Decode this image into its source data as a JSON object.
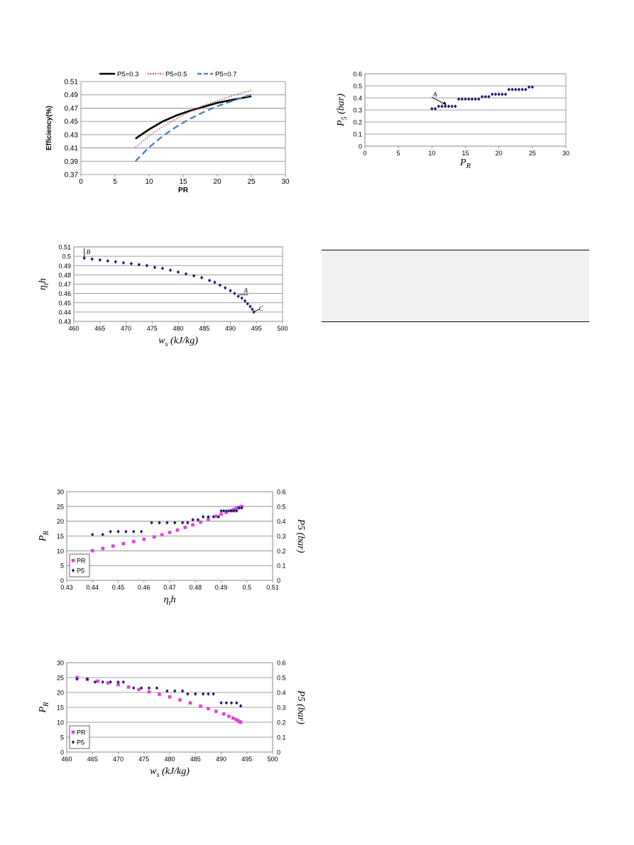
{
  "chart_data": [
    {
      "id": "fig-eff-vs-pr",
      "type": "line",
      "xlabel": "PR",
      "ylabel": "Efficiency(%)",
      "xlim": [
        0,
        30
      ],
      "ylim": [
        0.37,
        0.51
      ],
      "xticks": [
        "0",
        "5",
        "10",
        "15",
        "20",
        "25",
        "30"
      ],
      "yticks": [
        "0.37",
        "0.39",
        "0.41",
        "0.43",
        "0.45",
        "0.47",
        "0.49",
        "0.51"
      ],
      "grid": true,
      "legend": "top",
      "series": [
        {
          "name": "P5=0.3",
          "color": "#000000",
          "style": "solid",
          "x": [
            8,
            10,
            12,
            14,
            16,
            18,
            20,
            22,
            24,
            25
          ],
          "y": [
            0.424,
            0.438,
            0.45,
            0.459,
            0.466,
            0.472,
            0.478,
            0.482,
            0.486,
            0.488
          ]
        },
        {
          "name": "P5=0.5",
          "color": "#c0504d",
          "style": "dotted",
          "x": [
            8,
            10,
            12,
            14,
            16,
            18,
            20,
            22,
            24,
            25
          ],
          "y": [
            0.411,
            0.428,
            0.442,
            0.454,
            0.465,
            0.474,
            0.481,
            0.488,
            0.494,
            0.497
          ]
        },
        {
          "name": "P5=0.7",
          "color": "#4f81bd",
          "style": "dashed",
          "x": [
            8,
            10,
            12,
            14,
            16,
            18,
            20,
            22,
            24,
            25
          ],
          "y": [
            0.39,
            0.411,
            0.428,
            0.442,
            0.454,
            0.464,
            0.473,
            0.48,
            0.487,
            0.49
          ]
        }
      ]
    },
    {
      "id": "fig-p5-vs-pr",
      "type": "scatter",
      "xlabel": "P_R",
      "ylabel": "P_5 (bar)",
      "xlim": [
        0,
        30
      ],
      "ylim": [
        0,
        0.6
      ],
      "xticks": [
        "0",
        "5",
        "10",
        "15",
        "20",
        "25",
        "30"
      ],
      "yticks": [
        "0",
        "0.1",
        "0.2",
        "0.3",
        "0.4",
        "0.5",
        "0.6"
      ],
      "grid": true,
      "annotations": [
        {
          "text": "A",
          "x": 12.3,
          "y": 0.335
        }
      ],
      "series": [
        {
          "name": "",
          "color": "#1f1f6e",
          "x": [
            10,
            10.5,
            11,
            11.5,
            12,
            12.5,
            13,
            13.5,
            14,
            14.5,
            15,
            15.5,
            16,
            16.5,
            17,
            17.5,
            18,
            18.5,
            19,
            19.5,
            20,
            20.5,
            21,
            21.5,
            22,
            22.5,
            23,
            23.5,
            24,
            24.5,
            25
          ],
          "y": [
            0.31,
            0.31,
            0.33,
            0.33,
            0.33,
            0.33,
            0.33,
            0.33,
            0.39,
            0.39,
            0.39,
            0.39,
            0.39,
            0.39,
            0.39,
            0.41,
            0.41,
            0.41,
            0.43,
            0.43,
            0.43,
            0.43,
            0.43,
            0.47,
            0.47,
            0.47,
            0.47,
            0.47,
            0.47,
            0.49,
            0.49
          ]
        }
      ]
    },
    {
      "id": "fig-eta-vs-ws",
      "type": "scatter",
      "xlabel": "w_s (kJ/kg)",
      "ylabel": "η_th",
      "xlim": [
        460,
        500
      ],
      "ylim": [
        0.43,
        0.51
      ],
      "xticks": [
        "460",
        "465",
        "470",
        "475",
        "480",
        "485",
        "490",
        "495",
        "500"
      ],
      "yticks": [
        "0.43",
        "0.44",
        "0.45",
        "0.46",
        "0.47",
        "0.48",
        "0.49",
        "0.5",
        "0.51"
      ],
      "grid": true,
      "annotations": [
        {
          "text": "B",
          "x": 462,
          "y": 0.501
        },
        {
          "text": "A",
          "x": 491.5,
          "y": 0.458
        },
        {
          "text": "C",
          "x": 494.5,
          "y": 0.44
        }
      ],
      "series": [
        {
          "name": "",
          "color": "#1f1f6e",
          "x": [
            462,
            463.5,
            465,
            466.5,
            468,
            469.5,
            471,
            472.5,
            474,
            475.5,
            477,
            478.5,
            480,
            481.5,
            483,
            484.5,
            486,
            487,
            488,
            489,
            490,
            490.8,
            491.5,
            492.2,
            492.8,
            493.3,
            493.8,
            494.2,
            494.5
          ],
          "y": [
            0.498,
            0.497,
            0.496,
            0.495,
            0.494,
            0.493,
            0.492,
            0.491,
            0.49,
            0.488,
            0.487,
            0.485,
            0.483,
            0.481,
            0.479,
            0.477,
            0.474,
            0.472,
            0.469,
            0.466,
            0.463,
            0.46,
            0.457,
            0.455,
            0.452,
            0.449,
            0.446,
            0.443,
            0.44
          ]
        }
      ]
    },
    {
      "id": "fig-pr-p5-vs-eta",
      "type": "scatter",
      "xlabel": "η_th",
      "ylabel": "P_R",
      "y2label": "P_5 (bar)",
      "xlim": [
        0.43,
        0.51
      ],
      "ylim": [
        0,
        30
      ],
      "y2lim": [
        0,
        0.6
      ],
      "xticks": [
        "0.43",
        "0.44",
        "0.45",
        "0.46",
        "0.47",
        "0.48",
        "0.49",
        "0.5",
        "0.51"
      ],
      "yticks": [
        "0",
        "5",
        "10",
        "15",
        "20",
        "25",
        "30"
      ],
      "y2ticks": [
        "0",
        "0.1",
        "0.2",
        "0.3",
        "0.4",
        "0.5",
        "0.6"
      ],
      "grid": true,
      "legend": "bottom-left",
      "series": [
        {
          "name": "PR",
          "color": "#e040e0",
          "marker": "square",
          "axis": "left",
          "x": [
            0.44,
            0.444,
            0.448,
            0.452,
            0.456,
            0.46,
            0.464,
            0.467,
            0.47,
            0.473,
            0.476,
            0.479,
            0.482,
            0.485,
            0.488,
            0.49,
            0.492,
            0.494,
            0.495,
            0.496,
            0.497,
            0.498
          ],
          "y": [
            10.0,
            10.8,
            11.6,
            12.4,
            13.1,
            13.9,
            14.7,
            15.4,
            16.2,
            17.0,
            17.9,
            18.8,
            19.7,
            20.7,
            21.7,
            22.4,
            23.0,
            23.6,
            24.0,
            24.4,
            24.7,
            25.0
          ]
        },
        {
          "name": "P5",
          "color": "#1f1f6e",
          "marker": "diamond",
          "axis": "right",
          "x": [
            0.44,
            0.444,
            0.447,
            0.45,
            0.453,
            0.456,
            0.459,
            0.463,
            0.466,
            0.469,
            0.472,
            0.475,
            0.477,
            0.479,
            0.481,
            0.483,
            0.485,
            0.487,
            0.489,
            0.49,
            0.491,
            0.492,
            0.493,
            0.494,
            0.495,
            0.496,
            0.497,
            0.498
          ],
          "y": [
            0.31,
            0.31,
            0.33,
            0.33,
            0.33,
            0.33,
            0.33,
            0.39,
            0.39,
            0.39,
            0.39,
            0.39,
            0.39,
            0.41,
            0.41,
            0.43,
            0.43,
            0.43,
            0.43,
            0.47,
            0.47,
            0.47,
            0.47,
            0.47,
            0.47,
            0.47,
            0.49,
            0.49
          ]
        }
      ]
    },
    {
      "id": "fig-pr-p5-vs-ws",
      "type": "scatter",
      "xlabel": "w_s (kJ/kg)",
      "ylabel": "P_R",
      "y2label": "P_5 (bar)",
      "xlim": [
        460,
        500
      ],
      "ylim": [
        0,
        30
      ],
      "y2lim": [
        0,
        0.6
      ],
      "xticks": [
        "460",
        "465",
        "470",
        "475",
        "480",
        "485",
        "490",
        "495",
        "500"
      ],
      "yticks": [
        "0",
        "5",
        "10",
        "15",
        "20",
        "25",
        "30"
      ],
      "y2ticks": [
        "0",
        "0.1",
        "0.2",
        "0.3",
        "0.4",
        "0.5",
        "0.6"
      ],
      "grid": true,
      "legend": "bottom-left",
      "series": [
        {
          "name": "PR",
          "color": "#e040e0",
          "marker": "square",
          "axis": "left",
          "x": [
            462,
            464,
            466,
            468,
            470,
            472,
            474,
            476,
            478,
            480,
            482,
            484,
            486,
            487.5,
            489,
            490.5,
            491.5,
            492.3,
            492.9,
            493.3,
            493.6,
            493.8
          ],
          "y": [
            25.0,
            24.4,
            23.8,
            23.2,
            22.6,
            21.8,
            21.0,
            20.2,
            19.4,
            18.5,
            17.5,
            16.5,
            15.4,
            14.6,
            13.7,
            12.8,
            12.0,
            11.4,
            10.9,
            10.5,
            10.2,
            10.0
          ]
        },
        {
          "name": "P5",
          "color": "#1f1f6e",
          "marker": "diamond",
          "axis": "right",
          "x": [
            462,
            464,
            465.5,
            467,
            468.5,
            470,
            471,
            473,
            474.5,
            476,
            477.5,
            479.5,
            481,
            482.5,
            483.5,
            485,
            486.5,
            487.5,
            488.5,
            490,
            491,
            492,
            493,
            493.8
          ],
          "y": [
            0.49,
            0.49,
            0.47,
            0.47,
            0.47,
            0.47,
            0.47,
            0.43,
            0.43,
            0.43,
            0.43,
            0.41,
            0.41,
            0.41,
            0.39,
            0.39,
            0.39,
            0.39,
            0.39,
            0.33,
            0.33,
            0.33,
            0.33,
            0.31
          ]
        }
      ]
    }
  ]
}
